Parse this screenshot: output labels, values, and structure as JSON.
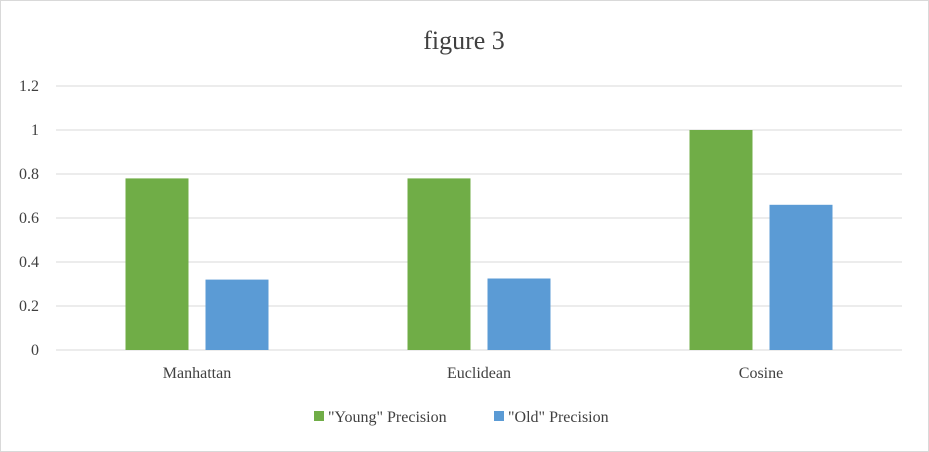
{
  "chart_data": {
    "type": "bar",
    "title": "figure 3",
    "categories": [
      "Manhattan",
      "Euclidean",
      "Cosine"
    ],
    "series": [
      {
        "name": "\"Young\" Precision",
        "values": [
          0.78,
          0.78,
          1.0
        ],
        "color": "#70ad47"
      },
      {
        "name": "\"Old\" Precision",
        "values": [
          0.32,
          0.325,
          0.66
        ],
        "color": "#5b9bd5"
      }
    ],
    "ylim": [
      0,
      1.2
    ],
    "yticks": [
      "0",
      "0.2",
      "0.4",
      "0.6",
      "0.8",
      "1",
      "1.2"
    ],
    "grid": true,
    "gridColor": "#d9d9d9",
    "legend": "bottom"
  }
}
